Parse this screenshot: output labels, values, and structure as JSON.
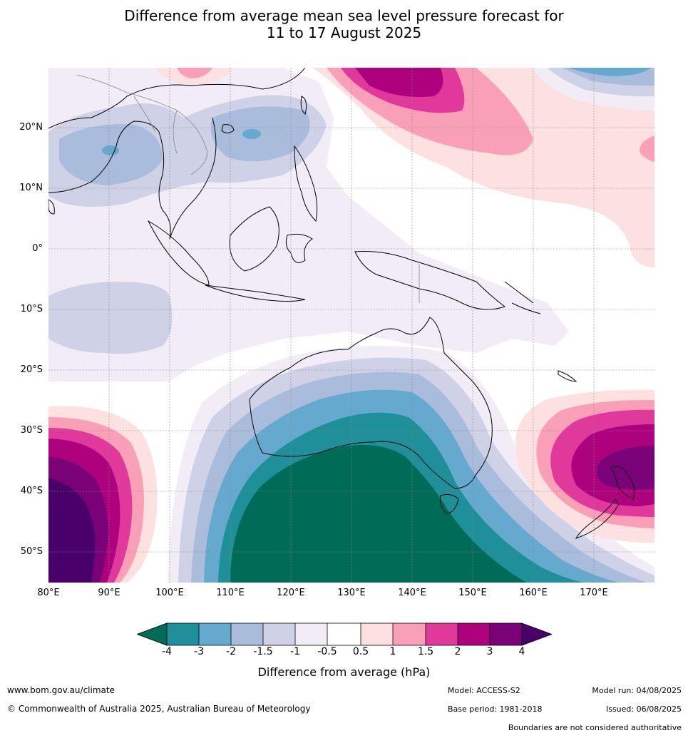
{
  "title_line1": "Difference from average mean sea level pressure forecast for",
  "title_line2": "11 to 17 August 2025",
  "lat_labels": [
    "20°N",
    "10°N",
    "0°",
    "10°S",
    "20°S",
    "30°S",
    "40°S",
    "50°S"
  ],
  "lon_labels": [
    "80°E",
    "90°E",
    "100°E",
    "110°E",
    "120°E",
    "130°E",
    "140°E",
    "150°E",
    "160°E",
    "170°E"
  ],
  "colorbar": {
    "ticks": [
      "-4",
      "-3",
      "-2",
      "-1.5",
      "-1",
      "-0.5",
      "0.5",
      "1",
      "1.5",
      "2",
      "3",
      "4"
    ],
    "colors": {
      "lt_-4": "#006b56",
      "-4_-3": "#1f8f9a",
      "-3_-2": "#65a9cf",
      "-2_-1.5": "#a9bcdb",
      "-1.5_-1": "#cfd1e6",
      "-1_-0.5": "#f2ecf6",
      "-0.5_0.5": "#ffffff",
      "0.5_1": "#fde0e0",
      "1_1.5": "#f9a0b8",
      "1.5_2": "#e0399b",
      "2_3": "#ae017e",
      "3_4": "#7a0177",
      "gt_4": "#49006a"
    },
    "label": "Difference from average (hPa)"
  },
  "footer": {
    "website": "www.bom.gov.au/climate",
    "copyright": "© Commonwealth of Australia 2025, Australian Bureau of Meteorology",
    "model": "Model: ACCESS-S2",
    "base_period": "Base period: 1981-2018",
    "model_run": "Model run: 04/08/2025",
    "issued": "Issued: 06/08/2025",
    "disclaimer": "Boundaries are not considered authoritative"
  }
}
